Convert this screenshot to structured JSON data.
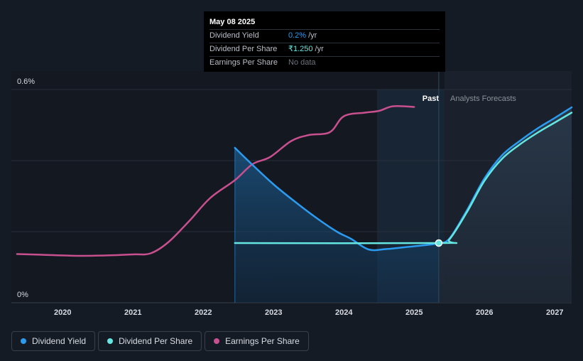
{
  "tooltip": {
    "date": "May 08 2025",
    "rows": [
      {
        "label": "Dividend Yield",
        "value": "0.2%",
        "unit": "/yr"
      },
      {
        "label": "Dividend Per Share",
        "value": "₹1.250",
        "unit": "/yr"
      },
      {
        "label": "Earnings Per Share",
        "value": "No data",
        "unit": ""
      }
    ]
  },
  "chart_data": {
    "type": "line",
    "y_tick_labels": [
      "0.6%",
      "0%"
    ],
    "x_tick_labels": [
      "2020",
      "2021",
      "2022",
      "2023",
      "2024",
      "2025",
      "2026",
      "2027"
    ],
    "xlim": [
      2019.27,
      2027.24
    ],
    "ylim_percent": [
      0,
      0.6
    ],
    "past_label": "Past",
    "forecast_label": "Analysts Forecasts",
    "divider_x": 2025.35,
    "series": [
      {
        "name": "Dividend Yield",
        "unit": "%",
        "color": "#2b9bf0",
        "points": [
          [
            2022.45,
            0.436
          ],
          [
            2022.7,
            0.388
          ],
          [
            2023.0,
            0.333
          ],
          [
            2023.3,
            0.285
          ],
          [
            2023.6,
            0.24
          ],
          [
            2023.9,
            0.2
          ],
          [
            2024.1,
            0.18
          ],
          [
            2024.35,
            0.15
          ],
          [
            2024.6,
            0.151
          ],
          [
            2024.9,
            0.157
          ],
          [
            2025.2,
            0.163
          ],
          [
            2025.35,
            0.168
          ],
          [
            2025.5,
            0.18
          ],
          [
            2025.75,
            0.26
          ],
          [
            2026.0,
            0.35
          ],
          [
            2026.25,
            0.415
          ],
          [
            2026.5,
            0.455
          ],
          [
            2026.75,
            0.49
          ],
          [
            2027.0,
            0.52
          ],
          [
            2027.24,
            0.55
          ]
        ]
      },
      {
        "name": "Dividend Per Share",
        "color": "#65e6e0",
        "points": [
          [
            2022.45,
            0.168
          ],
          [
            2025.35,
            0.168
          ],
          [
            2025.5,
            0.178
          ],
          [
            2025.75,
            0.255
          ],
          [
            2026.0,
            0.343
          ],
          [
            2026.25,
            0.405
          ],
          [
            2026.5,
            0.445
          ],
          [
            2026.75,
            0.478
          ],
          [
            2027.0,
            0.507
          ],
          [
            2027.24,
            0.535
          ]
        ]
      },
      {
        "name": "Earnings Per Share",
        "color": "#c9508e",
        "points": [
          [
            2019.35,
            0.137
          ],
          [
            2019.7,
            0.135
          ],
          [
            2020.2,
            0.132
          ],
          [
            2020.6,
            0.133
          ],
          [
            2021.0,
            0.136
          ],
          [
            2021.25,
            0.139
          ],
          [
            2021.5,
            0.17
          ],
          [
            2021.8,
            0.23
          ],
          [
            2022.1,
            0.295
          ],
          [
            2022.45,
            0.345
          ],
          [
            2022.7,
            0.39
          ],
          [
            2022.95,
            0.41
          ],
          [
            2023.25,
            0.455
          ],
          [
            2023.5,
            0.472
          ],
          [
            2023.8,
            0.48
          ],
          [
            2024.0,
            0.525
          ],
          [
            2024.3,
            0.535
          ],
          [
            2024.5,
            0.54
          ],
          [
            2024.7,
            0.553
          ],
          [
            2025.0,
            0.551
          ]
        ]
      }
    ]
  },
  "legend": [
    {
      "label": "Dividend Yield",
      "color": "#2b9bf0"
    },
    {
      "label": "Dividend Per Share",
      "color": "#65e6e0"
    },
    {
      "label": "Earnings Per Share",
      "color": "#c9508e"
    }
  ]
}
